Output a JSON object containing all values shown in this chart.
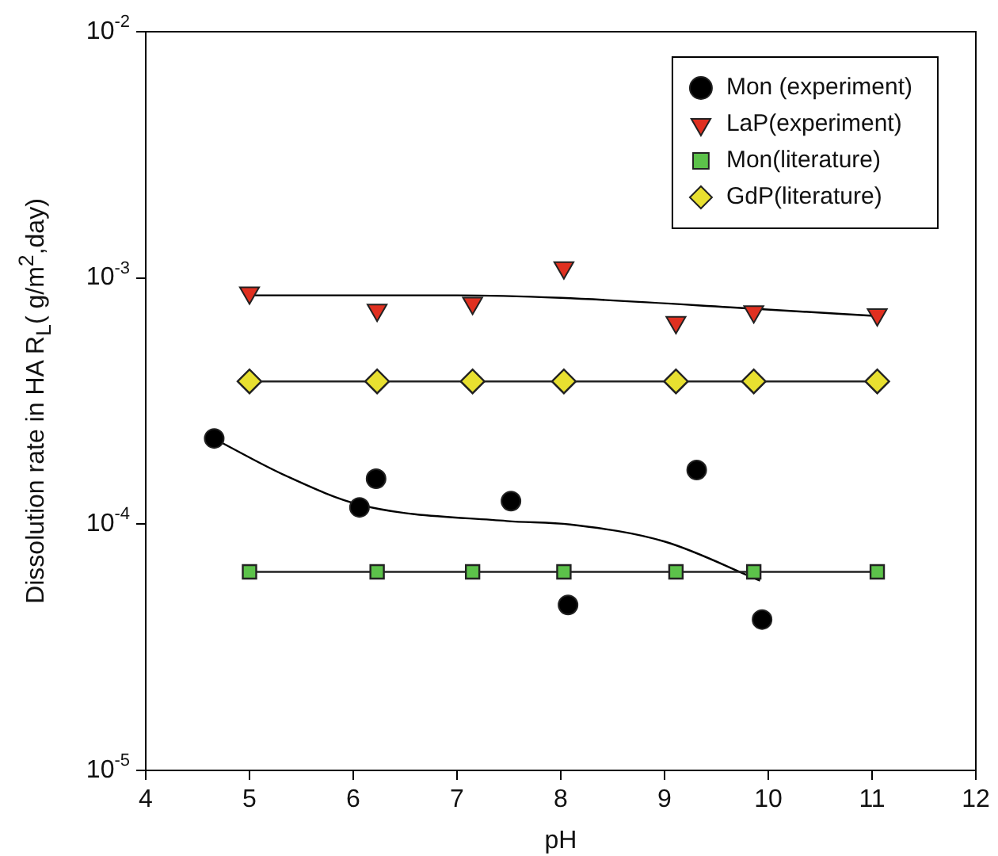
{
  "chart_data": {
    "type": "scatter",
    "xlabel": "pH",
    "ylabel": "Dissolution rate in HA R$_{L}$( g/m$^{2}$,day)",
    "log": "y",
    "legend": "top right",
    "grid": false,
    "xlim": [
      4,
      12
    ],
    "xticks": [
      4,
      5,
      6,
      7,
      8,
      9,
      10,
      11,
      12
    ],
    "ylim": [
      1e-05,
      0.01
    ],
    "yticks": [
      {
        "value": 1e-05,
        "label": "10$^{-5}$"
      },
      {
        "value": 0.0001,
        "label": "10$^{-4}$"
      },
      {
        "value": 0.001,
        "label": "10$^{-3}$"
      },
      {
        "value": 0.01,
        "label": "10$^{-2}$"
      }
    ],
    "series": [
      {
        "name": "Mon (experiment)",
        "marker": "circle",
        "color": "#000000",
        "x": [
          4.66,
          6.06,
          6.22,
          7.52,
          8.07,
          9.31,
          9.94
        ],
        "values": [
          0.000223,
          0.000117,
          0.000153,
          0.000124,
          4.7e-05,
          0.000166,
          4.1e-05
        ]
      },
      {
        "name": "LaP(experiment)",
        "marker": "triangle",
        "color": "#e03020",
        "x": [
          5.0,
          6.23,
          7.15,
          8.03,
          9.11,
          9.86,
          11.05
        ],
        "values": [
          0.00087,
          0.00074,
          0.00079,
          0.0011,
          0.00066,
          0.00073,
          0.00071
        ]
      },
      {
        "name": "Mon(literature)",
        "type": "line",
        "marker": "square",
        "color": "#5cc24a",
        "x": [
          5.0,
          6.23,
          7.15,
          8.03,
          9.11,
          9.86,
          11.05
        ],
        "values": [
          6.4e-05,
          6.4e-05,
          6.4e-05,
          6.4e-05,
          6.4e-05,
          6.4e-05,
          6.4e-05
        ]
      },
      {
        "name": "GdP(literature)",
        "type": "line",
        "marker": "diamond",
        "color": "#e8e030",
        "x": [
          5.0,
          6.23,
          7.15,
          8.03,
          9.11,
          9.86,
          11.05
        ],
        "values": [
          0.00038,
          0.00038,
          0.00038,
          0.00038,
          0.00038,
          0.00038,
          0.00038
        ]
      },
      {
        "type": "line",
        "marker": "none",
        "color": "#000000",
        "x": [
          4.68,
          5.34,
          6.06,
          7.48,
          8.09,
          9.0,
          9.92
        ],
        "values": [
          0.00022,
          0.000158,
          0.00012,
          0.000103,
          9.97e-05,
          8.5e-05,
          5.9e-05
        ]
      },
      {
        "type": "line",
        "marker": "none",
        "color": "#000000",
        "x": [
          5.0,
          7.0,
          8.0,
          9.86,
          11.05
        ],
        "values": [
          0.00085,
          0.00085,
          0.00083,
          0.00075,
          0.0007
        ]
      }
    ]
  }
}
